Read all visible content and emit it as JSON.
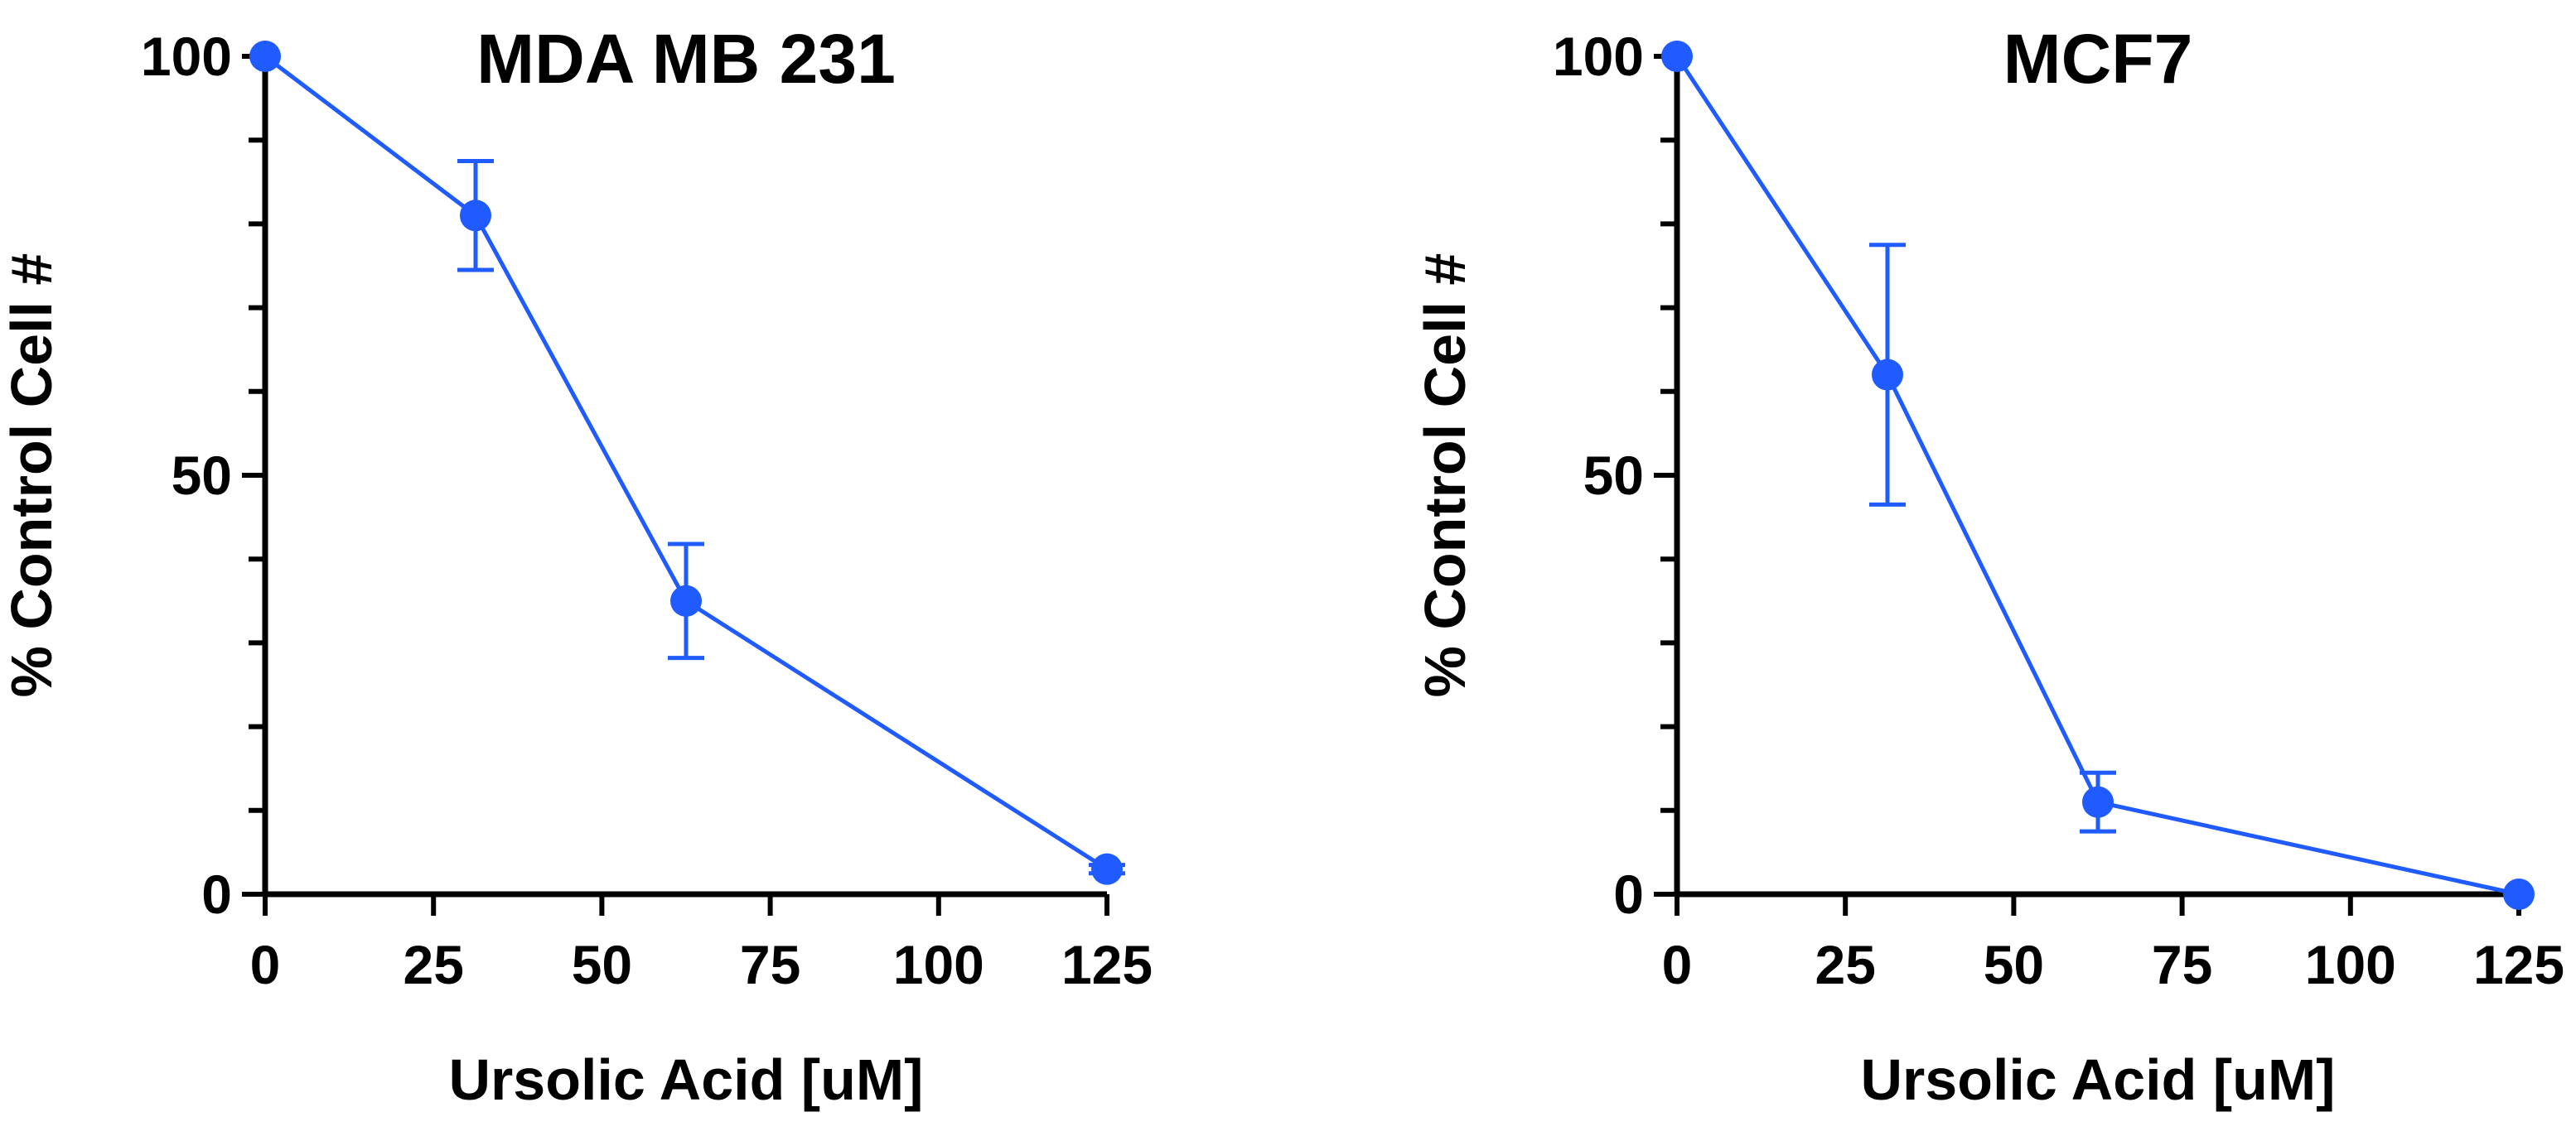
{
  "colors": {
    "series": "#1f5bff",
    "axis": "#000000"
  },
  "chart_data": [
    {
      "type": "line",
      "title": "MDA MB 231",
      "xlabel": "Ursolic Acid [uM]",
      "ylabel": "% Control Cell  #",
      "xlim": [
        0,
        125
      ],
      "ylim": [
        0,
        100
      ],
      "xticks": [
        "0",
        "25",
        "50",
        "75",
        "100",
        "125"
      ],
      "yticks": [
        "0",
        "50",
        "100"
      ],
      "grid": false,
      "series": [
        {
          "x": [
            0,
            31.25,
            62.5,
            125
          ],
          "y": [
            100,
            81,
            35,
            3
          ],
          "yerr": [
            0,
            6.5,
            6.8,
            0.5
          ]
        }
      ]
    },
    {
      "type": "line",
      "title": "MCF7",
      "xlabel": "Ursolic Acid [uM]",
      "ylabel": "% Control Cell #",
      "xlim": [
        0,
        125
      ],
      "ylim": [
        0,
        100
      ],
      "xticks": [
        "0",
        "25",
        "50",
        "75",
        "100",
        "125"
      ],
      "yticks": [
        "0",
        "50",
        "100"
      ],
      "grid": false,
      "series": [
        {
          "x": [
            0,
            31.25,
            62.5,
            125
          ],
          "y": [
            100,
            62,
            11,
            0
          ],
          "yerr": [
            0,
            15.5,
            3.5,
            0
          ]
        }
      ]
    }
  ]
}
